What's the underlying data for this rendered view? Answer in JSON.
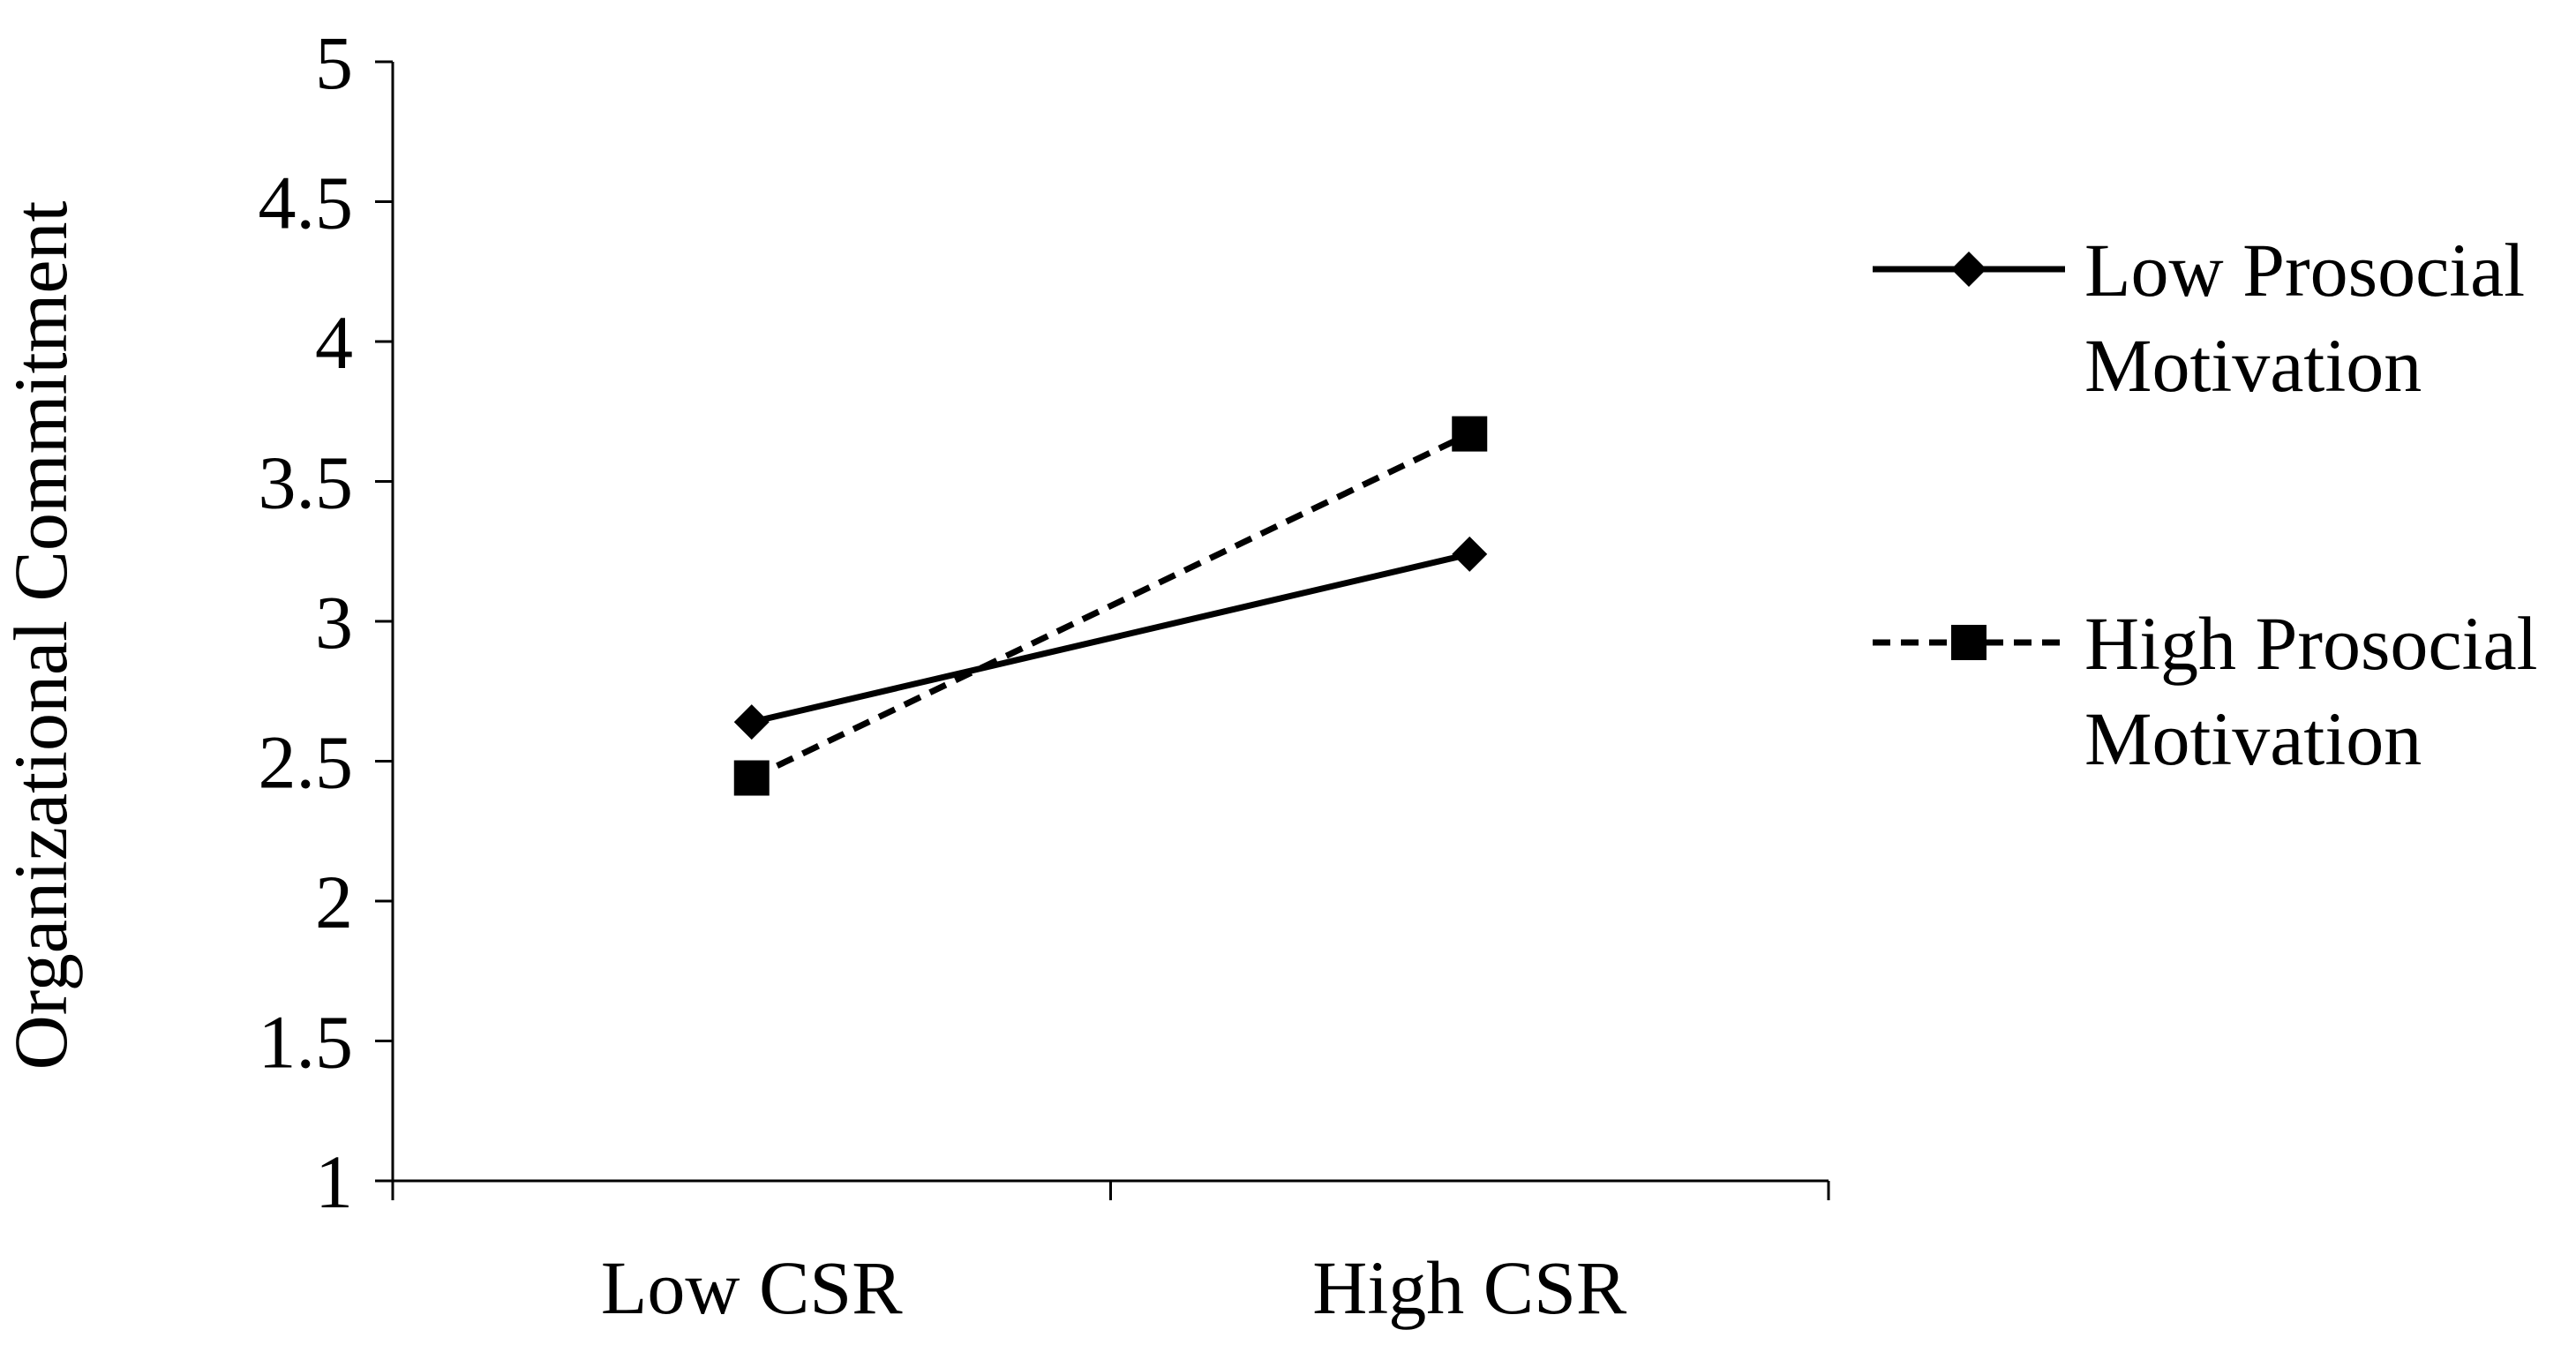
{
  "chart_data": {
    "type": "line",
    "title": "",
    "xlabel": "",
    "ylabel": "Organizational Commitment",
    "categories": [
      "Low CSR",
      "High CSR"
    ],
    "ylim": [
      1,
      5
    ],
    "yticks": [
      "1",
      "1.5",
      "2",
      "2.5",
      "3",
      "3.5",
      "4",
      "4.5",
      "5"
    ],
    "grid": false,
    "legend_position": "right",
    "series": [
      {
        "name_line1": "Low Prosocial",
        "name_line2": "Motivation",
        "values": [
          2.64,
          3.24
        ],
        "line_style": "solid",
        "marker": "diamond",
        "color": "#000000"
      },
      {
        "name_line1": "High Prosocial",
        "name_line2": "Motivation",
        "values": [
          2.44,
          3.67
        ],
        "line_style": "dashed",
        "marker": "square",
        "color": "#000000"
      }
    ]
  }
}
